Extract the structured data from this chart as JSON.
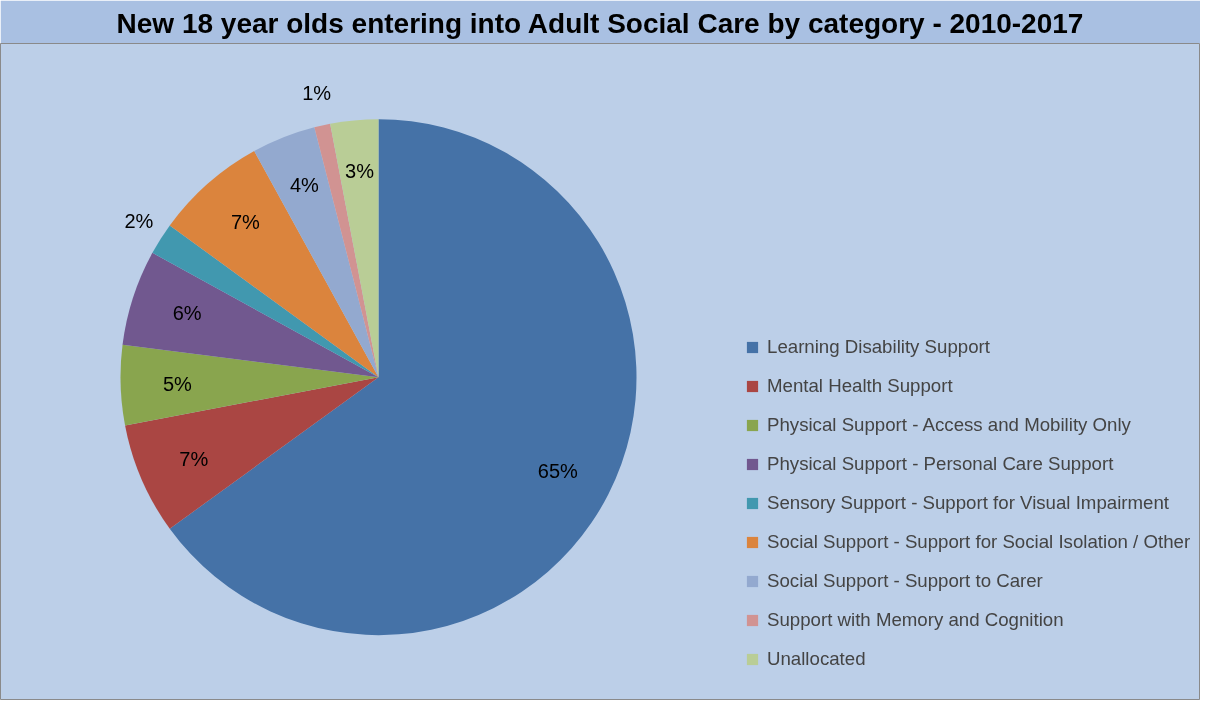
{
  "chart_data": {
    "type": "pie",
    "title": "New 18 year olds entering into Adult Social Care by category - 2010-2017",
    "categories": [
      "Learning Disability Support",
      "Mental Health Support",
      "Physical Support - Access and Mobility Only",
      "Physical Support - Personal Care Support",
      "Sensory Support - Support for Visual Impairment",
      "Social Support - Support for Social Isolation / Other",
      "Social Support - Support to Carer",
      "Support with Memory and Cognition",
      "Unallocated"
    ],
    "values": [
      65,
      7,
      5,
      6,
      2,
      7,
      4,
      1,
      3
    ],
    "value_labels": [
      "65%",
      "7%",
      "5%",
      "6%",
      "2%",
      "7%",
      "4%",
      "1%",
      "3%"
    ],
    "colors": [
      "#4572a7",
      "#aa4643",
      "#89a54e",
      "#71588f",
      "#4198af",
      "#db843d",
      "#93a9cf",
      "#d19392",
      "#b9cd96"
    ],
    "legend": "right"
  }
}
